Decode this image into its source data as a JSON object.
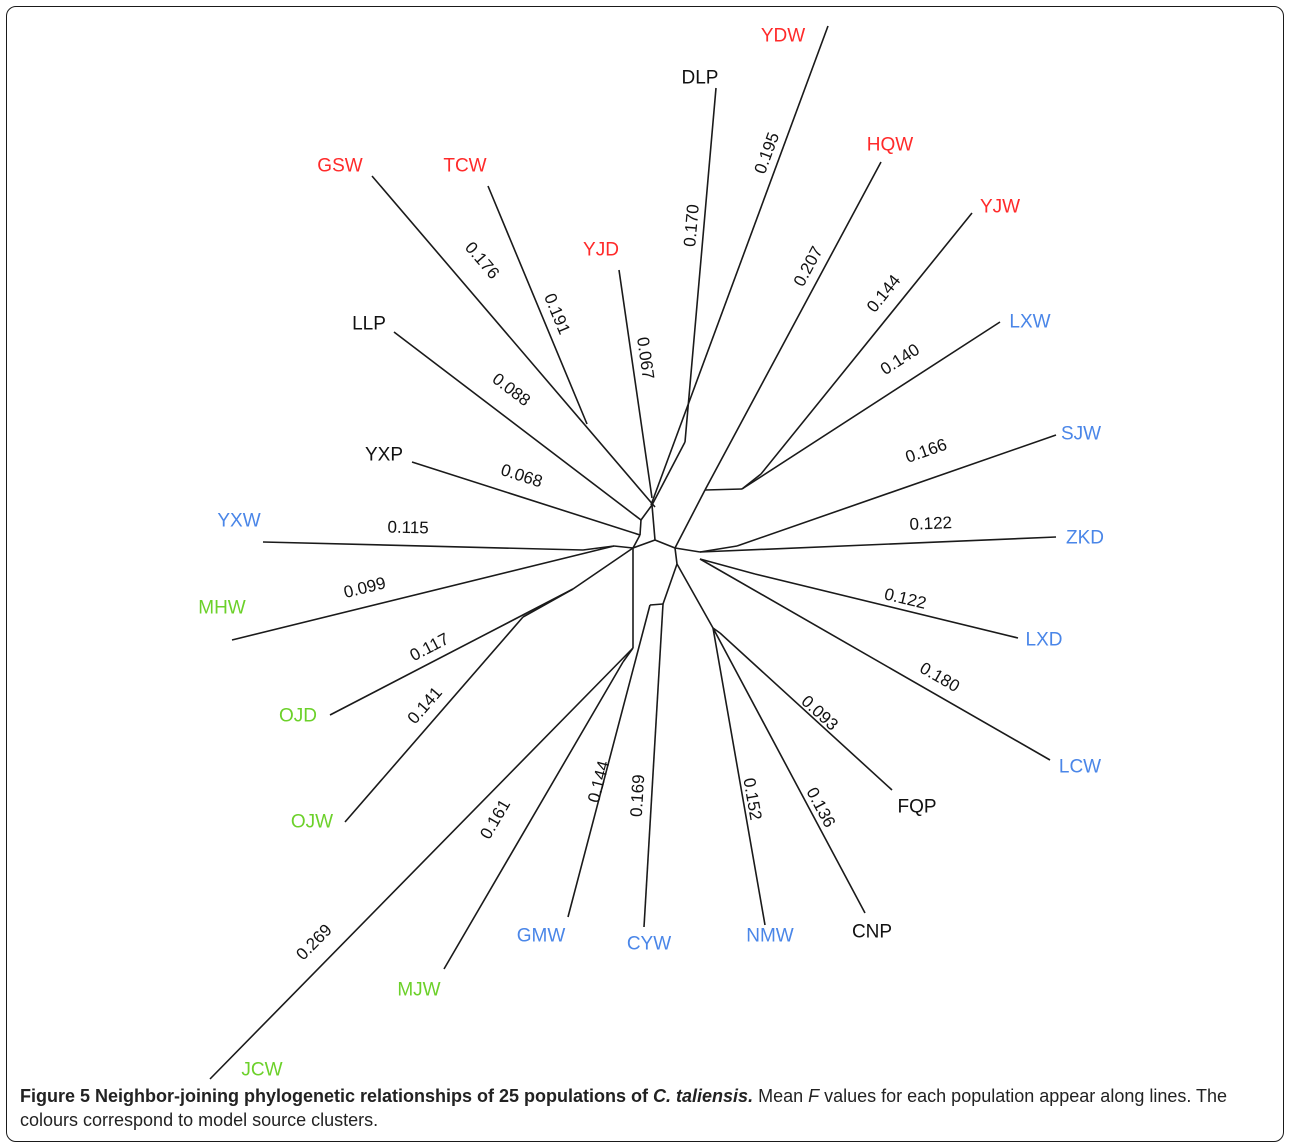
{
  "colors": {
    "red": "#ff2a2a",
    "blue": "#4a86e8",
    "green": "#6cd12a",
    "black": "#111111"
  },
  "caption": {
    "title_prefix": "Figure 5 Neighbor-joining phylogenetic relationships of 25 populations of ",
    "title_species": "C. taliensis.",
    "body_before_f": " Mean ",
    "f_letter": "F",
    "body_after_f": " values for each population appear along lines. The colours correspond to model source clusters."
  },
  "tips": [
    {
      "id": "GSW",
      "label": "GSW",
      "cluster": "red",
      "value": "0.176"
    },
    {
      "id": "TCW",
      "label": "TCW",
      "cluster": "red",
      "value": "0.191"
    },
    {
      "id": "YJD",
      "label": "YJD",
      "cluster": "red",
      "value": "0.067"
    },
    {
      "id": "DLP",
      "label": "DLP",
      "cluster": "black",
      "value": "0.170"
    },
    {
      "id": "YDW",
      "label": "YDW",
      "cluster": "red",
      "value": "0.195"
    },
    {
      "id": "HQW",
      "label": "HQW",
      "cluster": "red",
      "value": "0.207"
    },
    {
      "id": "YJW",
      "label": "YJW",
      "cluster": "red",
      "value": "0.144"
    },
    {
      "id": "LXW",
      "label": "LXW",
      "cluster": "blue",
      "value": "0.140"
    },
    {
      "id": "SJW",
      "label": "SJW",
      "cluster": "blue",
      "value": "0.166"
    },
    {
      "id": "ZKD",
      "label": "ZKD",
      "cluster": "blue",
      "value": "0.122"
    },
    {
      "id": "LXD",
      "label": "LXD",
      "cluster": "blue",
      "value": "0.122"
    },
    {
      "id": "LCW",
      "label": "LCW",
      "cluster": "blue",
      "value": "0.180"
    },
    {
      "id": "FQP",
      "label": "FQP",
      "cluster": "black",
      "value": "0.093"
    },
    {
      "id": "CNP",
      "label": "CNP",
      "cluster": "black",
      "value": "0.136"
    },
    {
      "id": "NMW",
      "label": "NMW",
      "cluster": "blue",
      "value": "0.152"
    },
    {
      "id": "CYW",
      "label": "CYW",
      "cluster": "blue",
      "value": "0.169"
    },
    {
      "id": "GMW",
      "label": "GMW",
      "cluster": "blue",
      "value": "0.144"
    },
    {
      "id": "MJW",
      "label": "MJW",
      "cluster": "green",
      "value": "0.161"
    },
    {
      "id": "JCW",
      "label": "JCW",
      "cluster": "green",
      "value": "0.269"
    },
    {
      "id": "OJW",
      "label": "OJW",
      "cluster": "green",
      "value": "0.141"
    },
    {
      "id": "OJD",
      "label": "OJD",
      "cluster": "green",
      "value": "0.117"
    },
    {
      "id": "MHW",
      "label": "MHW",
      "cluster": "green",
      "value": "0.099"
    },
    {
      "id": "YXW",
      "label": "YXW",
      "cluster": "blue",
      "value": "0.115"
    },
    {
      "id": "YXP",
      "label": "YXP",
      "cluster": "black",
      "value": "0.068"
    },
    {
      "id": "LLP",
      "label": "LLP",
      "cluster": "black",
      "value": "0.088"
    }
  ]
}
